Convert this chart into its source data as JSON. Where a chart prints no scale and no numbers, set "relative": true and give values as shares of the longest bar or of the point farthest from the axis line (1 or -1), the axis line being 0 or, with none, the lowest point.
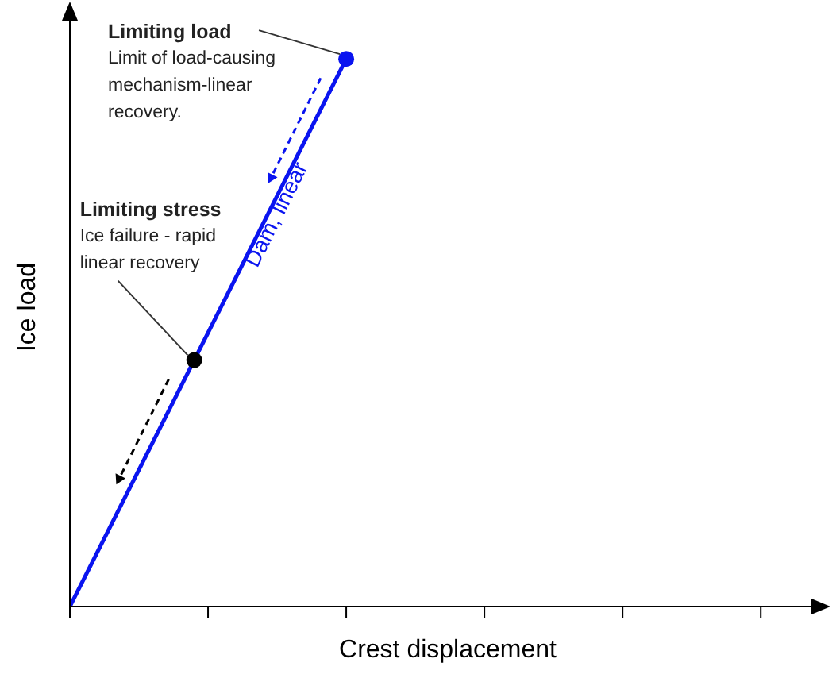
{
  "chart_data": {
    "type": "line",
    "relative": true,
    "xlabel": "Crest displacement",
    "ylabel": "Ice load",
    "categories": [
      null,
      null,
      null,
      null,
      null,
      null,
      null,
      null,
      null,
      null,
      null,
      null,
      null,
      null,
      null,
      null,
      null,
      null,
      null,
      null,
      null
    ],
    "series": [
      {
        "name": "Dam, linear",
        "color": "#0a14f0",
        "values": [
          0,
          0.05,
          0.1,
          0.15,
          0.2,
          0.25,
          0.3,
          0.35,
          0.4,
          0.45,
          0.5,
          0.55,
          0.6,
          0.65,
          0.7,
          0.75,
          0.8,
          0.85,
          0.9,
          0.95,
          1
        ],
        "colors": [
          null,
          null,
          null,
          null,
          null,
          null,
          null,
          null,
          null,
          "#000000",
          null,
          null,
          null,
          null,
          null,
          null,
          null,
          null,
          null,
          null,
          "#0a14f0"
        ]
      }
    ],
    "annotations": [
      "Limiting load",
      "Limit of load-causing mechanism-linear recovery.",
      "Limiting stress",
      "Ice failure - rapid linear recovery"
    ]
  }
}
